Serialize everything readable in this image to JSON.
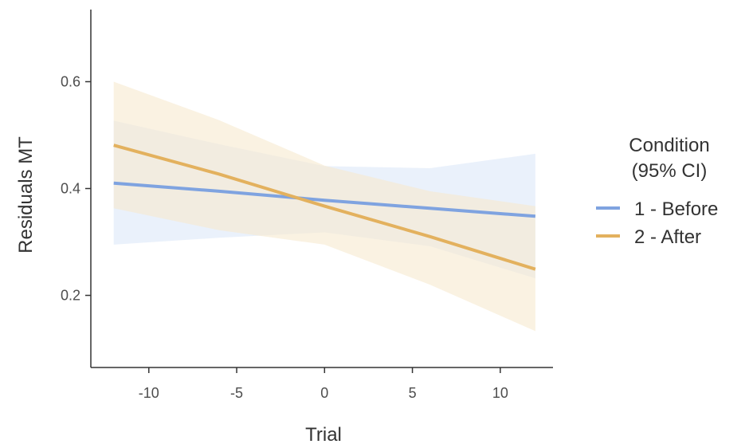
{
  "chart_data": {
    "type": "line",
    "title": "",
    "xlabel": "Trial",
    "ylabel": "Residuals MT",
    "xlim": [
      -13.3,
      13
    ],
    "ylim": [
      0.065,
      0.735
    ],
    "xticks": [
      -10,
      -5,
      0,
      5,
      10
    ],
    "xtick_labels": [
      "-10",
      "-5",
      "0",
      "5",
      "10"
    ],
    "yticks": [
      0.2,
      0.4,
      0.6
    ],
    "ytick_labels": [
      "0.2",
      "0.4",
      "0.6"
    ],
    "grid": false,
    "legend": {
      "title_lines": [
        "Condition",
        "(95% CI)"
      ],
      "placement": "right"
    },
    "series": [
      {
        "name": "1 - Before",
        "color": "#7FA3E0",
        "band_color": "#DCE7F8",
        "x": [
          -12,
          -6,
          0,
          6,
          12
        ],
        "y": [
          0.41,
          0.395,
          0.378,
          0.363,
          0.348
        ],
        "ci_lower": [
          0.295,
          0.308,
          0.318,
          0.292,
          0.232
        ],
        "ci_upper": [
          0.527,
          0.483,
          0.442,
          0.438,
          0.465
        ]
      },
      {
        "name": "2 - After",
        "color": "#E3B15E",
        "band_color": "#F6E9CE",
        "x": [
          -12,
          -6,
          0,
          6,
          12
        ],
        "y": [
          0.481,
          0.427,
          0.367,
          0.31,
          0.249
        ],
        "ci_lower": [
          0.363,
          0.322,
          0.295,
          0.22,
          0.133
        ],
        "ci_upper": [
          0.6,
          0.528,
          0.443,
          0.395,
          0.367
        ]
      }
    ]
  }
}
